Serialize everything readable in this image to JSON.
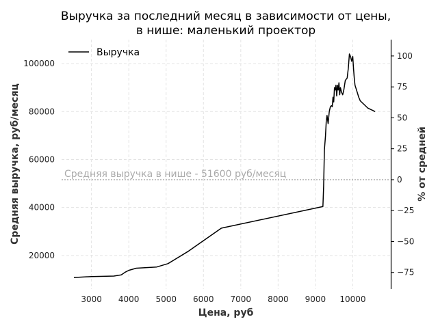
{
  "chart_data": {
    "type": "line",
    "title": [
      "Выручка за последний месяц в зависимости от цены,",
      "в нише: маленький проектор"
    ],
    "xlabel": "Цена, руб",
    "ylabel": "Средняя выручка, руб/месяц",
    "y2label": "% от средней",
    "xlim": [
      2200,
      11000
    ],
    "ylim": [
      6000,
      110000
    ],
    "y2lim": [
      -88.4,
      113.2
    ],
    "x_ticks": [
      3000,
      4000,
      5000,
      6000,
      7000,
      8000,
      9000,
      10000
    ],
    "x_tick_labels": [
      "3000",
      "4000",
      "5000",
      "6000",
      "7000",
      "8000",
      "9000",
      "10000"
    ],
    "y_ticks": [
      20000,
      40000,
      60000,
      80000,
      100000
    ],
    "y_tick_labels": [
      "20000",
      "40000",
      "60000",
      "80000",
      "100000"
    ],
    "y2_ticks": [
      -75,
      -50,
      -25,
      0,
      25,
      50,
      75,
      100
    ],
    "y2_tick_labels": [
      "−75",
      "−50",
      "−25",
      "0",
      "25",
      "50",
      "75",
      "100"
    ],
    "grid": true,
    "legend": {
      "position": "top-left",
      "entries": [
        "Выручка"
      ]
    },
    "reference_line": {
      "y": 51600,
      "label": "Средняя выручка в нише - 51600 руб/месяц"
    },
    "series": [
      {
        "name": "Выручка",
        "color": "#000000",
        "x": [
          2530,
          3000,
          3600,
          3800,
          3900,
          4000,
          4200,
          4750,
          5050,
          5600,
          6480,
          9200,
          9220,
          9240,
          9270,
          9290,
          9310,
          9340,
          9370,
          9400,
          9430,
          9450,
          9470,
          9490,
          9510,
          9530,
          9550,
          9570,
          9590,
          9610,
          9630,
          9650,
          9670,
          9700,
          9730,
          9760,
          9800,
          9850,
          9880,
          9910,
          9940,
          9970,
          10000,
          10020,
          10040,
          10060,
          10080,
          10100,
          10130,
          10160,
          10200,
          10300,
          10400,
          10600
        ],
        "y": [
          10800,
          11200,
          11400,
          11900,
          13000,
          13800,
          14700,
          15200,
          16600,
          21800,
          31400,
          40400,
          49000,
          64000,
          70000,
          76000,
          78400,
          75000,
          80000,
          82000,
          82500,
          82000,
          86000,
          84000,
          90000,
          89000,
          91000,
          86500,
          91000,
          89000,
          92000,
          87000,
          90000,
          88000,
          87000,
          89000,
          93000,
          94000,
          98000,
          104000,
          103000,
          101000,
          103000,
          98000,
          94000,
          91000,
          90000,
          89000,
          87500,
          86000,
          84500,
          83000,
          81500,
          80000
        ]
      }
    ]
  }
}
